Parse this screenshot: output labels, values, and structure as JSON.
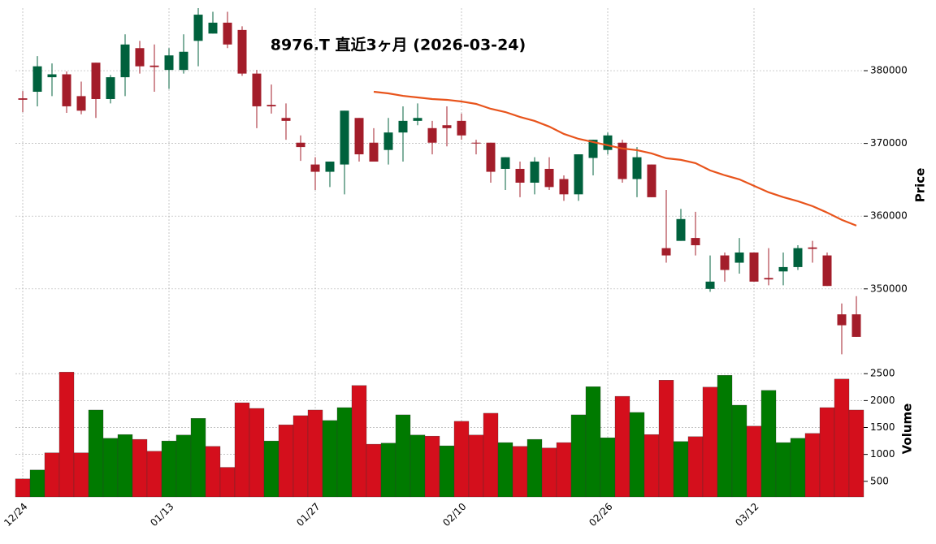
{
  "chart_data": {
    "type": "candlestick",
    "title": "8976.T  直近3ヶ月 (2026-03-24)",
    "ylabel": "Price",
    "y2label": "Volume",
    "categories": [
      "12/24",
      null,
      null,
      null,
      null,
      null,
      null,
      null,
      null,
      null,
      "01/13",
      null,
      null,
      null,
      null,
      null,
      null,
      null,
      null,
      null,
      "01/27",
      null,
      null,
      null,
      null,
      null,
      null,
      null,
      null,
      null,
      "02/10",
      null,
      null,
      null,
      null,
      null,
      null,
      null,
      null,
      null,
      "02/26",
      null,
      null,
      null,
      null,
      null,
      null,
      null,
      null,
      null,
      "03/12",
      null,
      null,
      null,
      null,
      null,
      null,
      null
    ],
    "open": [
      376200,
      377100,
      379100,
      379500,
      376500,
      381100,
      376100,
      379100,
      383100,
      380700,
      380100,
      380100,
      384100,
      385100,
      386600,
      385600,
      379600,
      375300,
      373500,
      370100,
      367100,
      366100,
      367100,
      373500,
      370100,
      369100,
      371500,
      373100,
      372100,
      372500,
      373100,
      370100,
      370100,
      366500,
      366500,
      364600,
      366500,
      365100,
      363000,
      368000,
      369100,
      370100,
      365100,
      367100,
      355600,
      356600,
      357000,
      350000,
      354600,
      353600,
      355000,
      351500,
      352400,
      353000,
      355700,
      354600,
      346500,
      346500
    ],
    "high": [
      377200,
      382000,
      381000,
      379900,
      378500,
      381100,
      379400,
      385000,
      384100,
      383600,
      383100,
      385000,
      388600,
      388100,
      388100,
      386100,
      380100,
      378100,
      375500,
      371100,
      368100,
      367500,
      374500,
      373500,
      372100,
      373500,
      375100,
      375500,
      373100,
      375100,
      374100,
      370500,
      370100,
      368100,
      367500,
      368100,
      368100,
      365600,
      368500,
      370500,
      371500,
      370500,
      369500,
      367100,
      363600,
      361000,
      360600,
      354600,
      355000,
      357000,
      355000,
      355600,
      355000,
      356000,
      356600,
      355000,
      348000,
      349000
    ],
    "low": [
      374300,
      375100,
      376500,
      374200,
      374000,
      373500,
      375500,
      376500,
      379600,
      377100,
      377500,
      379600,
      380600,
      385100,
      383100,
      379300,
      372100,
      374100,
      370500,
      367600,
      363600,
      364000,
      363000,
      367500,
      367500,
      367100,
      367500,
      372500,
      368500,
      369600,
      370500,
      368500,
      364600,
      363600,
      362600,
      363000,
      363600,
      362100,
      362100,
      365600,
      368500,
      364600,
      362600,
      362600,
      353600,
      356600,
      354600,
      349600,
      351000,
      352100,
      351000,
      350500,
      350500,
      352600,
      353600,
      350400,
      341000,
      343400
    ],
    "close": [
      376000,
      380600,
      379500,
      375100,
      374500,
      376100,
      379100,
      383600,
      380600,
      380500,
      382100,
      382600,
      387700,
      386600,
      383600,
      379600,
      375100,
      375100,
      373100,
      369500,
      366100,
      367500,
      374500,
      368500,
      367500,
      371500,
      373100,
      373500,
      370100,
      372100,
      371100,
      370000,
      366100,
      368100,
      364600,
      367500,
      364000,
      363000,
      368500,
      370500,
      371100,
      365100,
      368100,
      362600,
      354600,
      359600,
      356000,
      351000,
      352600,
      355000,
      351000,
      351300,
      353000,
      355600,
      355500,
      350400,
      345000,
      343400
    ],
    "volume": [
      545,
      710,
      1030,
      2530,
      1030,
      1825,
      1300,
      1370,
      1280,
      1060,
      1250,
      1360,
      1670,
      1150,
      760,
      1960,
      1855,
      1250,
      1550,
      1720,
      1825,
      1630,
      1870,
      2280,
      1190,
      1210,
      1735,
      1360,
      1340,
      1160,
      1615,
      1360,
      1765,
      1220,
      1150,
      1280,
      1120,
      1220,
      1735,
      2260,
      1310,
      2080,
      1780,
      1370,
      2380,
      1240,
      1330,
      2250,
      2470,
      1915,
      1525,
      2190,
      1220,
      1300,
      1390,
      1870,
      2400,
      1825
    ],
    "ma": {
      "color": "#e8541c",
      "values": [
        null,
        null,
        null,
        null,
        null,
        null,
        null,
        null,
        null,
        null,
        null,
        null,
        null,
        null,
        null,
        null,
        null,
        null,
        null,
        null,
        null,
        null,
        null,
        null,
        377100,
        376880,
        376540,
        376320,
        376100,
        375990,
        375760,
        375430,
        374760,
        374310,
        373640,
        373090,
        372310,
        371300,
        370630,
        370190,
        369740,
        369300,
        369070,
        368630,
        367960,
        367740,
        367290,
        366290,
        365620,
        365060,
        364170,
        363280,
        362610,
        362050,
        361380,
        360490,
        359490,
        358700
      ]
    },
    "up_color": "#00613d",
    "down_color": "#a31d2a",
    "volume_up_color": "#007a00",
    "volume_down_color": "#d40f1c",
    "ylim": [
      340600,
      388600
    ],
    "yticks": [
      350000,
      360000,
      370000,
      380000
    ],
    "y2lim": [
      210,
      2730
    ],
    "y2ticks": [
      500,
      1000,
      1500,
      2000,
      2500
    ],
    "grid": true
  }
}
